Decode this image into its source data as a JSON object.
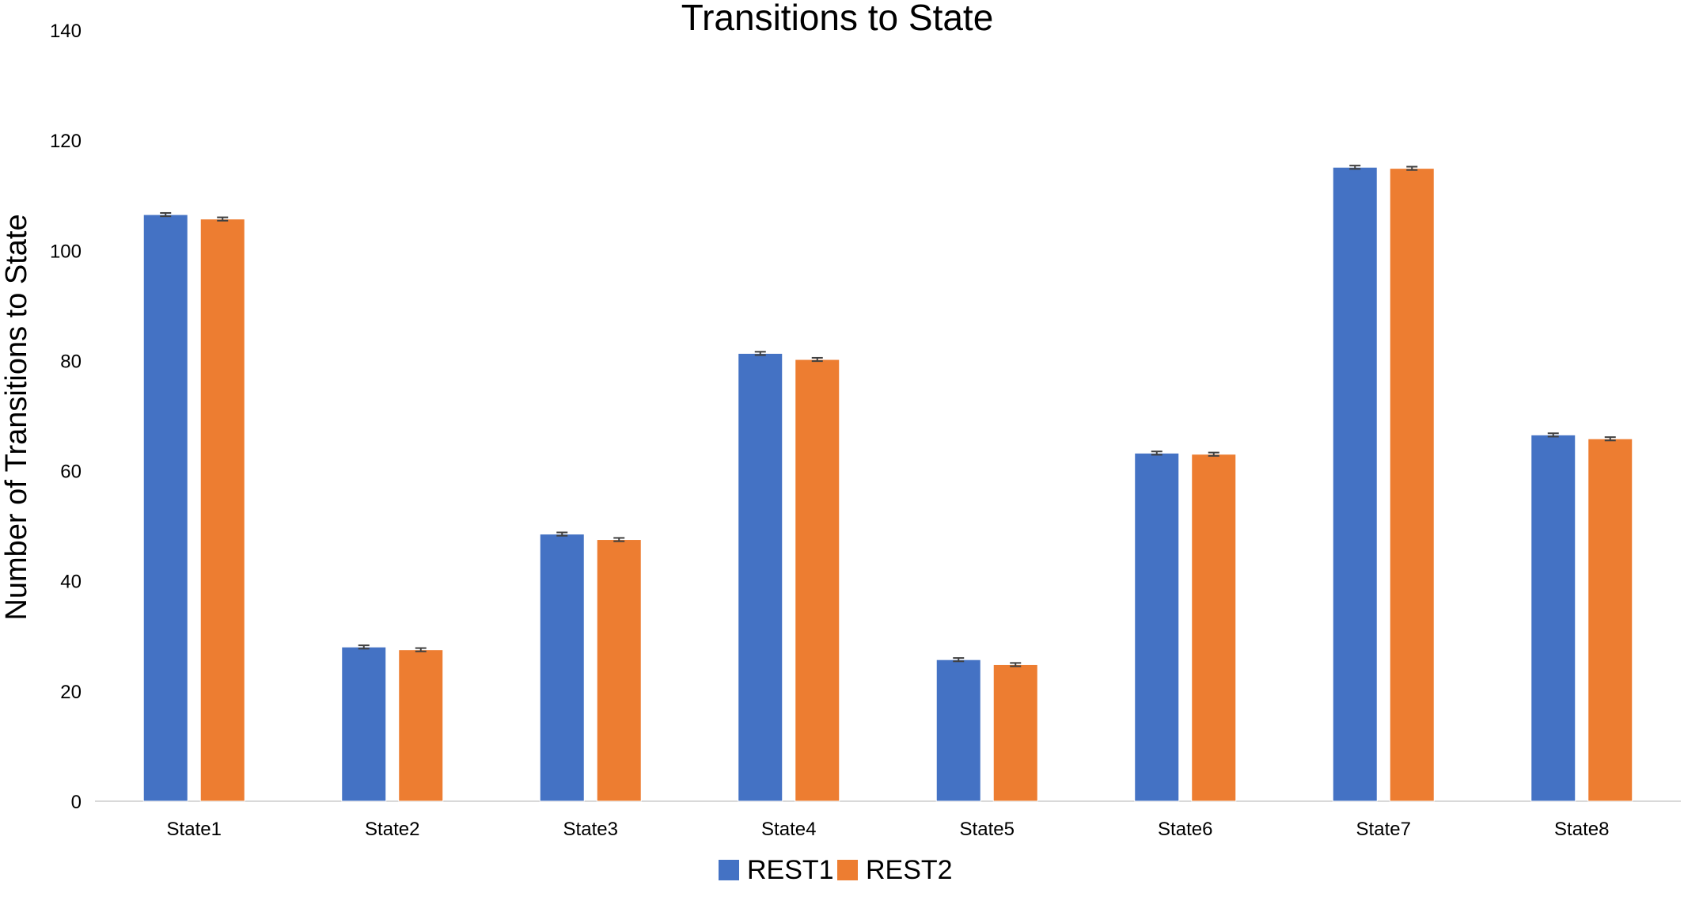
{
  "chart_data": {
    "type": "bar",
    "title": "Transitions to State",
    "xlabel": "",
    "ylabel": "Number of Transitions to State",
    "categories": [
      "State1",
      "State2",
      "State3",
      "State4",
      "State5",
      "State6",
      "State7",
      "State8"
    ],
    "series": [
      {
        "name": "REST1",
        "color": "#4472C4",
        "values": [
          106.5,
          28.0,
          48.5,
          81.3,
          25.7,
          63.2,
          115.1,
          66.5
        ],
        "errors": [
          0.3,
          0.3,
          0.3,
          0.3,
          0.3,
          0.3,
          0.3,
          0.3
        ]
      },
      {
        "name": "REST2",
        "color": "#ED7D31",
        "values": [
          105.7,
          27.5,
          47.5,
          80.2,
          24.8,
          63.0,
          114.9,
          65.8
        ],
        "errors": [
          0.3,
          0.3,
          0.3,
          0.3,
          0.3,
          0.3,
          0.3,
          0.3
        ]
      }
    ],
    "ylim": [
      0,
      140
    ],
    "yticks": [
      "0",
      "20",
      "40",
      "60",
      "80",
      "100",
      "120",
      "140"
    ],
    "grid": false,
    "legend_position": "bottom-center"
  }
}
